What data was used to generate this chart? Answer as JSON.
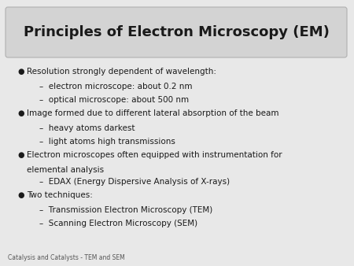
{
  "title": "Principles of Electron Microscopy (EM)",
  "title_fontsize": 13,
  "title_bg_color": "#d3d3d3",
  "slide_bg_color": "#e8e8e8",
  "body_bg_color": "#f5f5f5",
  "text_color": "#1a1a1a",
  "footer": "Catalysis and Catalysts - TEM and SEM",
  "footer_fontsize": 5.5,
  "body_fontsize": 7.5,
  "bullet_symbol": "●",
  "bullets": [
    {
      "type": "bullet",
      "text": "Resolution strongly dependent of wavelength:"
    },
    {
      "type": "sub",
      "text": "–  electron microscope: about 0.2 nm"
    },
    {
      "type": "sub",
      "text": "–  optical microscope: about 500 nm"
    },
    {
      "type": "bullet",
      "text": "Image formed due to different lateral absorption of the beam"
    },
    {
      "type": "sub",
      "text": "–  heavy atoms darkest"
    },
    {
      "type": "sub",
      "text": "–  light atoms high transmissions"
    },
    {
      "type": "bullet",
      "text": "Electron microscopes often equipped with instrumentation for"
    },
    {
      "type": "cont",
      "text": "elemental analysis"
    },
    {
      "type": "sub",
      "text": "–  EDAX (Energy Dispersive Analysis of X-rays)"
    },
    {
      "type": "bullet",
      "text": "Two techniques:"
    },
    {
      "type": "sub",
      "text": "–  Transmission Electron Microscopy (TEM)"
    },
    {
      "type": "sub",
      "text": "–  Scanning Electron Microscopy (SEM)"
    }
  ]
}
